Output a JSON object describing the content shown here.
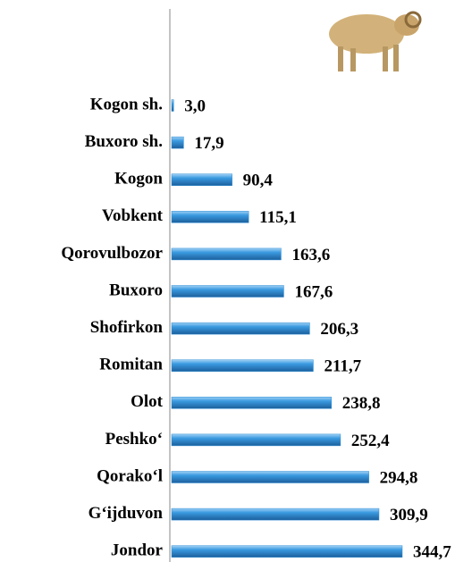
{
  "chart_data": {
    "type": "bar",
    "orientation": "horizontal",
    "categories": [
      "Kogon sh.",
      "Buxoro sh.",
      "Kogon",
      "Vobkent",
      "Qorovulbozor",
      "Buxoro",
      "Shofirkon",
      "Romitan",
      "Olot",
      "Peshko‘",
      "Qorako‘l",
      "G‘ijduvon",
      "Jondor"
    ],
    "values": [
      3.0,
      17.9,
      90.4,
      115.1,
      163.6,
      167.6,
      206.3,
      211.7,
      238.8,
      252.4,
      294.8,
      309.9,
      344.7
    ],
    "value_labels": [
      "3,0",
      "17,9",
      "90,4",
      "115,1",
      "163,6",
      "167,6",
      "206,3",
      "211,7",
      "238,8",
      "252,4",
      "294,8",
      "309,9",
      "344,7"
    ],
    "color": "#2f8fd6"
  }
}
